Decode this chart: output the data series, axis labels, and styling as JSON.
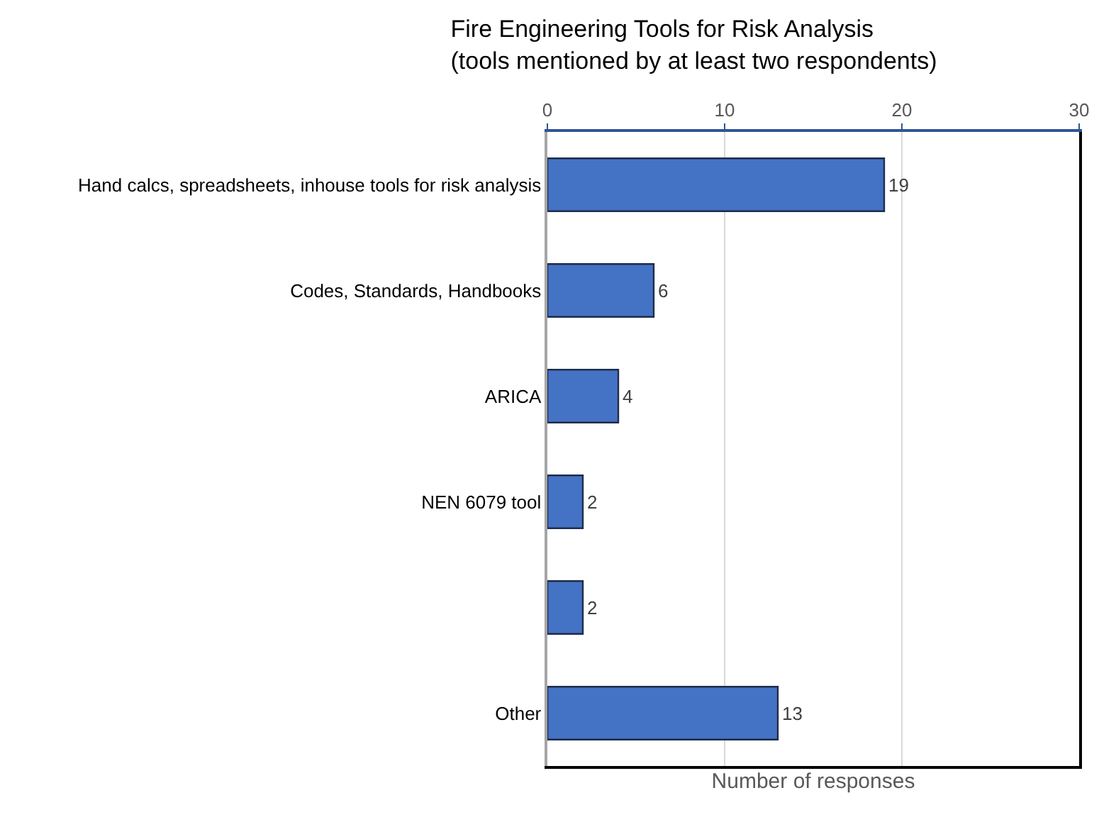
{
  "chart_data": {
    "type": "bar",
    "orientation": "horizontal",
    "title": "Fire Engineering Tools for Risk Analysis\n(tools mentioned by at least two respondents)",
    "xlabel": "Number of responses",
    "categories": [
      "Hand calcs, spreadsheets, inhouse tools for risk analysis",
      "Codes, Standards, Handbooks",
      "ARICA",
      "NEN 6079 tool",
      null,
      "Other"
    ],
    "values": [
      19,
      6,
      4,
      2,
      2,
      13
    ],
    "color": "#4472c4",
    "data_labels": true,
    "xlim": [
      0,
      30
    ],
    "xticks": [
      0,
      10,
      20,
      30
    ],
    "grid": "x"
  }
}
